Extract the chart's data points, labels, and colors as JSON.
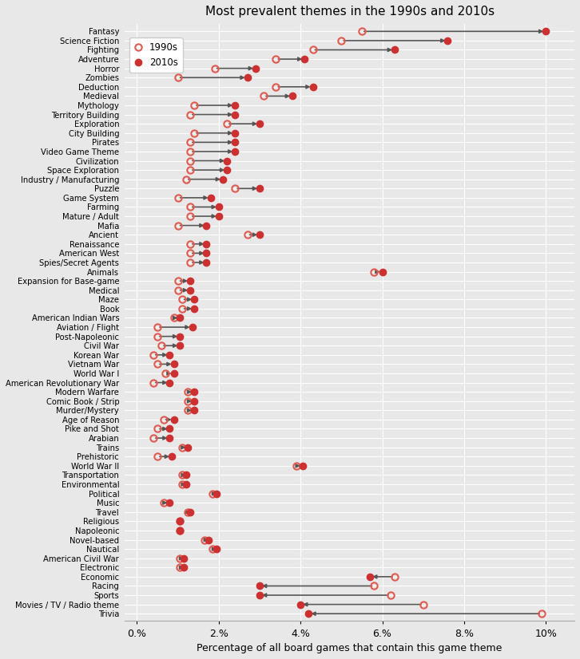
{
  "title": "Most prevalent themes in the 1990s and 2010s",
  "xlabel": "Percentage of all board games that contain this game theme",
  "categories": [
    "Fantasy",
    "Science Fiction",
    "Fighting",
    "Adventure",
    "Horror",
    "Zombies",
    "Deduction",
    "Medieval",
    "Mythology",
    "Territory Building",
    "Exploration",
    "City Building",
    "Pirates",
    "Video Game Theme",
    "Civilization",
    "Space Exploration",
    "Industry / Manufacturing",
    "Puzzle",
    "Game System",
    "Farming",
    "Mature / Adult",
    "Mafia",
    "Ancient",
    "Renaissance",
    "American West",
    "Spies/Secret Agents",
    "Animals",
    "Expansion for Base-game",
    "Medical",
    "Maze",
    "Book",
    "American Indian Wars",
    "Aviation / Flight",
    "Post-Napoleonic",
    "Civil War",
    "Korean War",
    "Vietnam War",
    "World War I",
    "American Revolutionary War",
    "Modern Warfare",
    "Comic Book / Strip",
    "Murder/Mystery",
    "Age of Reason",
    "Pike and Shot",
    "Arabian",
    "Trains",
    "Prehistoric",
    "World War II",
    "Transportation",
    "Environmental",
    "Political",
    "Music",
    "Travel",
    "Religious",
    "Napoleonic",
    "Novel-based",
    "Nautical",
    "American Civil War",
    "Electronic",
    "Economic",
    "Racing",
    "Sports",
    "Movies / TV / Radio theme",
    "Trivia"
  ],
  "val_1990s": [
    5.5,
    5.0,
    4.3,
    3.4,
    1.9,
    1.0,
    3.4,
    3.1,
    1.4,
    1.3,
    2.2,
    1.4,
    1.3,
    1.3,
    1.3,
    1.3,
    1.2,
    2.4,
    1.0,
    1.3,
    1.3,
    1.0,
    2.7,
    1.3,
    1.3,
    1.3,
    5.8,
    1.0,
    1.0,
    1.1,
    1.1,
    0.9,
    0.5,
    0.5,
    0.6,
    0.4,
    0.5,
    0.7,
    0.4,
    1.25,
    1.25,
    1.25,
    0.65,
    0.5,
    0.4,
    1.1,
    0.5,
    3.9,
    1.1,
    1.1,
    1.85,
    0.65,
    1.25,
    1.05,
    1.05,
    1.65,
    1.85,
    1.05,
    1.05,
    6.3,
    5.8,
    6.2,
    7.0,
    9.9
  ],
  "val_2010s": [
    10.0,
    7.6,
    6.3,
    4.1,
    2.9,
    2.7,
    4.3,
    3.8,
    2.4,
    2.4,
    3.0,
    2.4,
    2.4,
    2.4,
    2.2,
    2.2,
    2.1,
    3.0,
    1.8,
    2.0,
    2.0,
    1.7,
    3.0,
    1.7,
    1.7,
    1.7,
    6.0,
    1.3,
    1.3,
    1.4,
    1.4,
    1.05,
    1.35,
    1.05,
    1.05,
    0.8,
    0.9,
    0.9,
    0.8,
    1.4,
    1.4,
    1.4,
    0.9,
    0.8,
    0.8,
    1.25,
    0.85,
    4.05,
    1.2,
    1.2,
    1.95,
    0.8,
    1.3,
    1.05,
    1.05,
    1.75,
    1.95,
    1.15,
    1.15,
    5.7,
    3.0,
    3.0,
    4.0,
    4.2
  ],
  "color_1990s": "#e05a50",
  "color_2010s": "#cc3030",
  "arrow_color": "#555555",
  "bg_color": "#e8e8e8",
  "grid_color": "white"
}
